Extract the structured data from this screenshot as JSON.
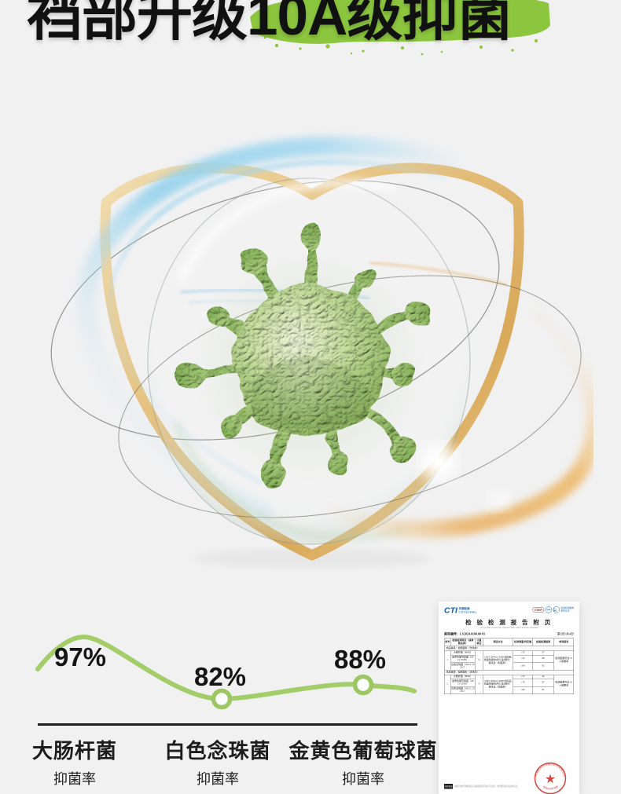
{
  "page": {
    "background": "#f1f1f2"
  },
  "header": {
    "title_prefix": "裆部升级",
    "title_highlight": "10A级抑菌",
    "brush_color": "#8cc63e"
  },
  "hero": {
    "illustration": "gold-shield-glass-bubble-green-virus",
    "colors": {
      "shield_gold": "#e2bb72",
      "virus_green": "#8fbc5e",
      "swirl_blue": "#8fd0ec",
      "swirl_orange": "#e9af5e"
    }
  },
  "chart_data": {
    "type": "line",
    "categories": [
      "大肠杆菌",
      "白色念珠菌",
      "金黄色葡萄球菌"
    ],
    "category_sublabel": "抑菌率",
    "values": [
      97,
      82,
      88
    ],
    "labels": [
      "97%",
      "82%",
      "88%"
    ],
    "unit": "%",
    "line_color": "#a3cd69",
    "marker_fill": "#ffffff",
    "markers": [
      false,
      true,
      true
    ],
    "baseline_color": "#202020",
    "title": "",
    "xlabel": "",
    "ylabel": ""
  },
  "certificate": {
    "lab_logo": "CTI",
    "lab_logo_sub1": "华测检测",
    "lab_logo_sub2": "CTI TESTING",
    "badges": {
      "cma": "CMA",
      "cnas": "CNAS",
      "ilac": "ilac-MRA"
    },
    "badge_note1": "检验检测机构",
    "badge_note2": "资质认定",
    "title": "检 验 检 测 报 告 附 页",
    "title_en": "ATTACHED PAGES OF INSPECTION AND TESTING REPORT",
    "report_no_label": "报告编号：",
    "report_no": "LS2024.0100.00 03",
    "page_info": "第2页/共4页",
    "table": {
      "headers": [
        "序号",
        "检验检测项目（或参数名称）",
        "计量单位",
        "测试方法",
        "标准限量/判定值",
        "检验检测结果",
        "单项结论"
      ],
      "sections": [
        {
          "no": "1",
          "sample": "成品等级：裆部面料（洗涤前）",
          "unit": "%",
          "method": "GB/T 20944.3-2008 纺织品 抗菌性能的评价 第3部分：振荡法（抑菌率）",
          "conclusion": "检测结果符合 10A 级要求",
          "rows": [
            [
              "大肠杆菌（8099）",
              "≥70",
              "97"
            ],
            [
              "金黄色葡萄球菌（ATCC 6538）",
              "≥70",
              "88"
            ],
            [
              "白色念珠菌（ATCC 10231）",
              "≥60",
              "82"
            ]
          ]
        },
        {
          "no": "2",
          "sample": "成品等级：裆部面料（洗涤后）",
          "unit": "%",
          "method": "GB/T 20944.3-2008 纺织品 抗菌性能的评价 第3部分：振荡法（抑菌率）",
          "conclusion": "检测结果符合 10A 级要求",
          "rows": [
            [
              "大肠杆菌（8099）",
              "≥70",
              "96"
            ],
            [
              "金黄色葡萄球菌（ATCC 6538）",
              "≥70",
              "87"
            ],
            [
              "白色念珠菌（ATCC 10231）",
              "≥60",
              "81"
            ]
          ]
        }
      ]
    },
    "stamp": {
      "company": "华测检测认证集团股份有限公司",
      "label": "检验检测专用章",
      "star": "★",
      "color": "#cf3a32"
    },
    "footer": {
      "verify": "扫码验证",
      "note": "本报告由华测检测认证集团股份有限公司出具，检测结果仅对来样负责"
    }
  }
}
